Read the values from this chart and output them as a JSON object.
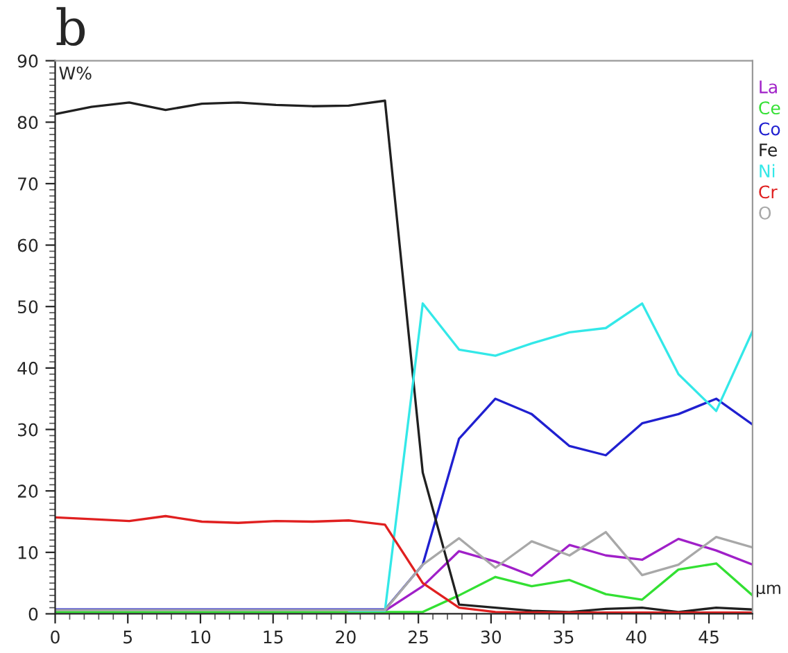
{
  "chart_data": {
    "type": "line",
    "title": "b",
    "ylabel": "W%",
    "xlabel": "µm",
    "x": [
      0,
      2.5,
      5.1,
      7.6,
      10.1,
      12.6,
      15.2,
      17.7,
      20.2,
      22.7,
      25.3,
      27.8,
      30.3,
      32.8,
      35.4,
      37.9,
      40.4,
      42.9,
      45.5,
      48
    ],
    "series": [
      {
        "name": "La",
        "color": "#a020c8",
        "values": [
          null,
          null,
          null,
          null,
          null,
          null,
          null,
          null,
          0.5,
          0.5,
          4.5,
          10.2,
          8.5,
          6.2,
          11.2,
          9.5,
          8.8,
          12.2,
          10.3,
          8
        ]
      },
      {
        "name": "Ce",
        "color": "#33e033",
        "values": [
          0.3,
          0.3,
          0.3,
          0.3,
          0.3,
          0.3,
          0.3,
          0.3,
          0.3,
          0.3,
          0.3,
          3,
          6,
          4.5,
          5.5,
          3.2,
          2.3,
          7.2,
          8.2,
          3
        ]
      },
      {
        "name": "Co",
        "color": "#2020d0",
        "values": [
          0.7,
          0.7,
          0.7,
          0.7,
          0.7,
          0.7,
          0.7,
          0.7,
          0.7,
          0.7,
          8,
          28.5,
          35,
          32.5,
          27.3,
          25.8,
          31,
          32.5,
          35,
          30.8
        ]
      },
      {
        "name": "Fe",
        "color": "#202020",
        "values": [
          81.3,
          82.5,
          83.2,
          82,
          83,
          83.2,
          82.8,
          82.6,
          82.7,
          83.5,
          23,
          1.5,
          1,
          0.5,
          0.3,
          0.8,
          1,
          0.3,
          1,
          0.7
        ]
      },
      {
        "name": "Ni",
        "color": "#33e8e8",
        "values": [
          null,
          null,
          null,
          null,
          null,
          null,
          null,
          null,
          0.5,
          0.5,
          50.5,
          43,
          42,
          44,
          45.8,
          46.5,
          50.5,
          39,
          33,
          46
        ]
      },
      {
        "name": "Cr",
        "color": "#e02020",
        "values": [
          15.7,
          15.4,
          15.1,
          15.9,
          15,
          14.8,
          15.1,
          15,
          15.2,
          14.5,
          5,
          1,
          0.3,
          0.2,
          0.2,
          0.2,
          0.2,
          0.2,
          0.2,
          0.2
        ]
      },
      {
        "name": "O",
        "color": "#a8a8a8",
        "values": [
          0.6,
          0.6,
          0.6,
          0.6,
          0.6,
          0.6,
          0.6,
          0.6,
          0.6,
          0.6,
          8,
          12.3,
          7.5,
          11.8,
          9.5,
          13.3,
          6.3,
          8,
          12.5,
          10.8
        ]
      }
    ],
    "xlim": [
      0,
      48
    ],
    "xticks": [
      0,
      5,
      10,
      15,
      20,
      25,
      30,
      35,
      40,
      45
    ],
    "ylim": [
      0,
      90
    ],
    "yticks": [
      0,
      10,
      20,
      30,
      40,
      50,
      60,
      70,
      80,
      90
    ],
    "grid": false,
    "legend": "right"
  }
}
